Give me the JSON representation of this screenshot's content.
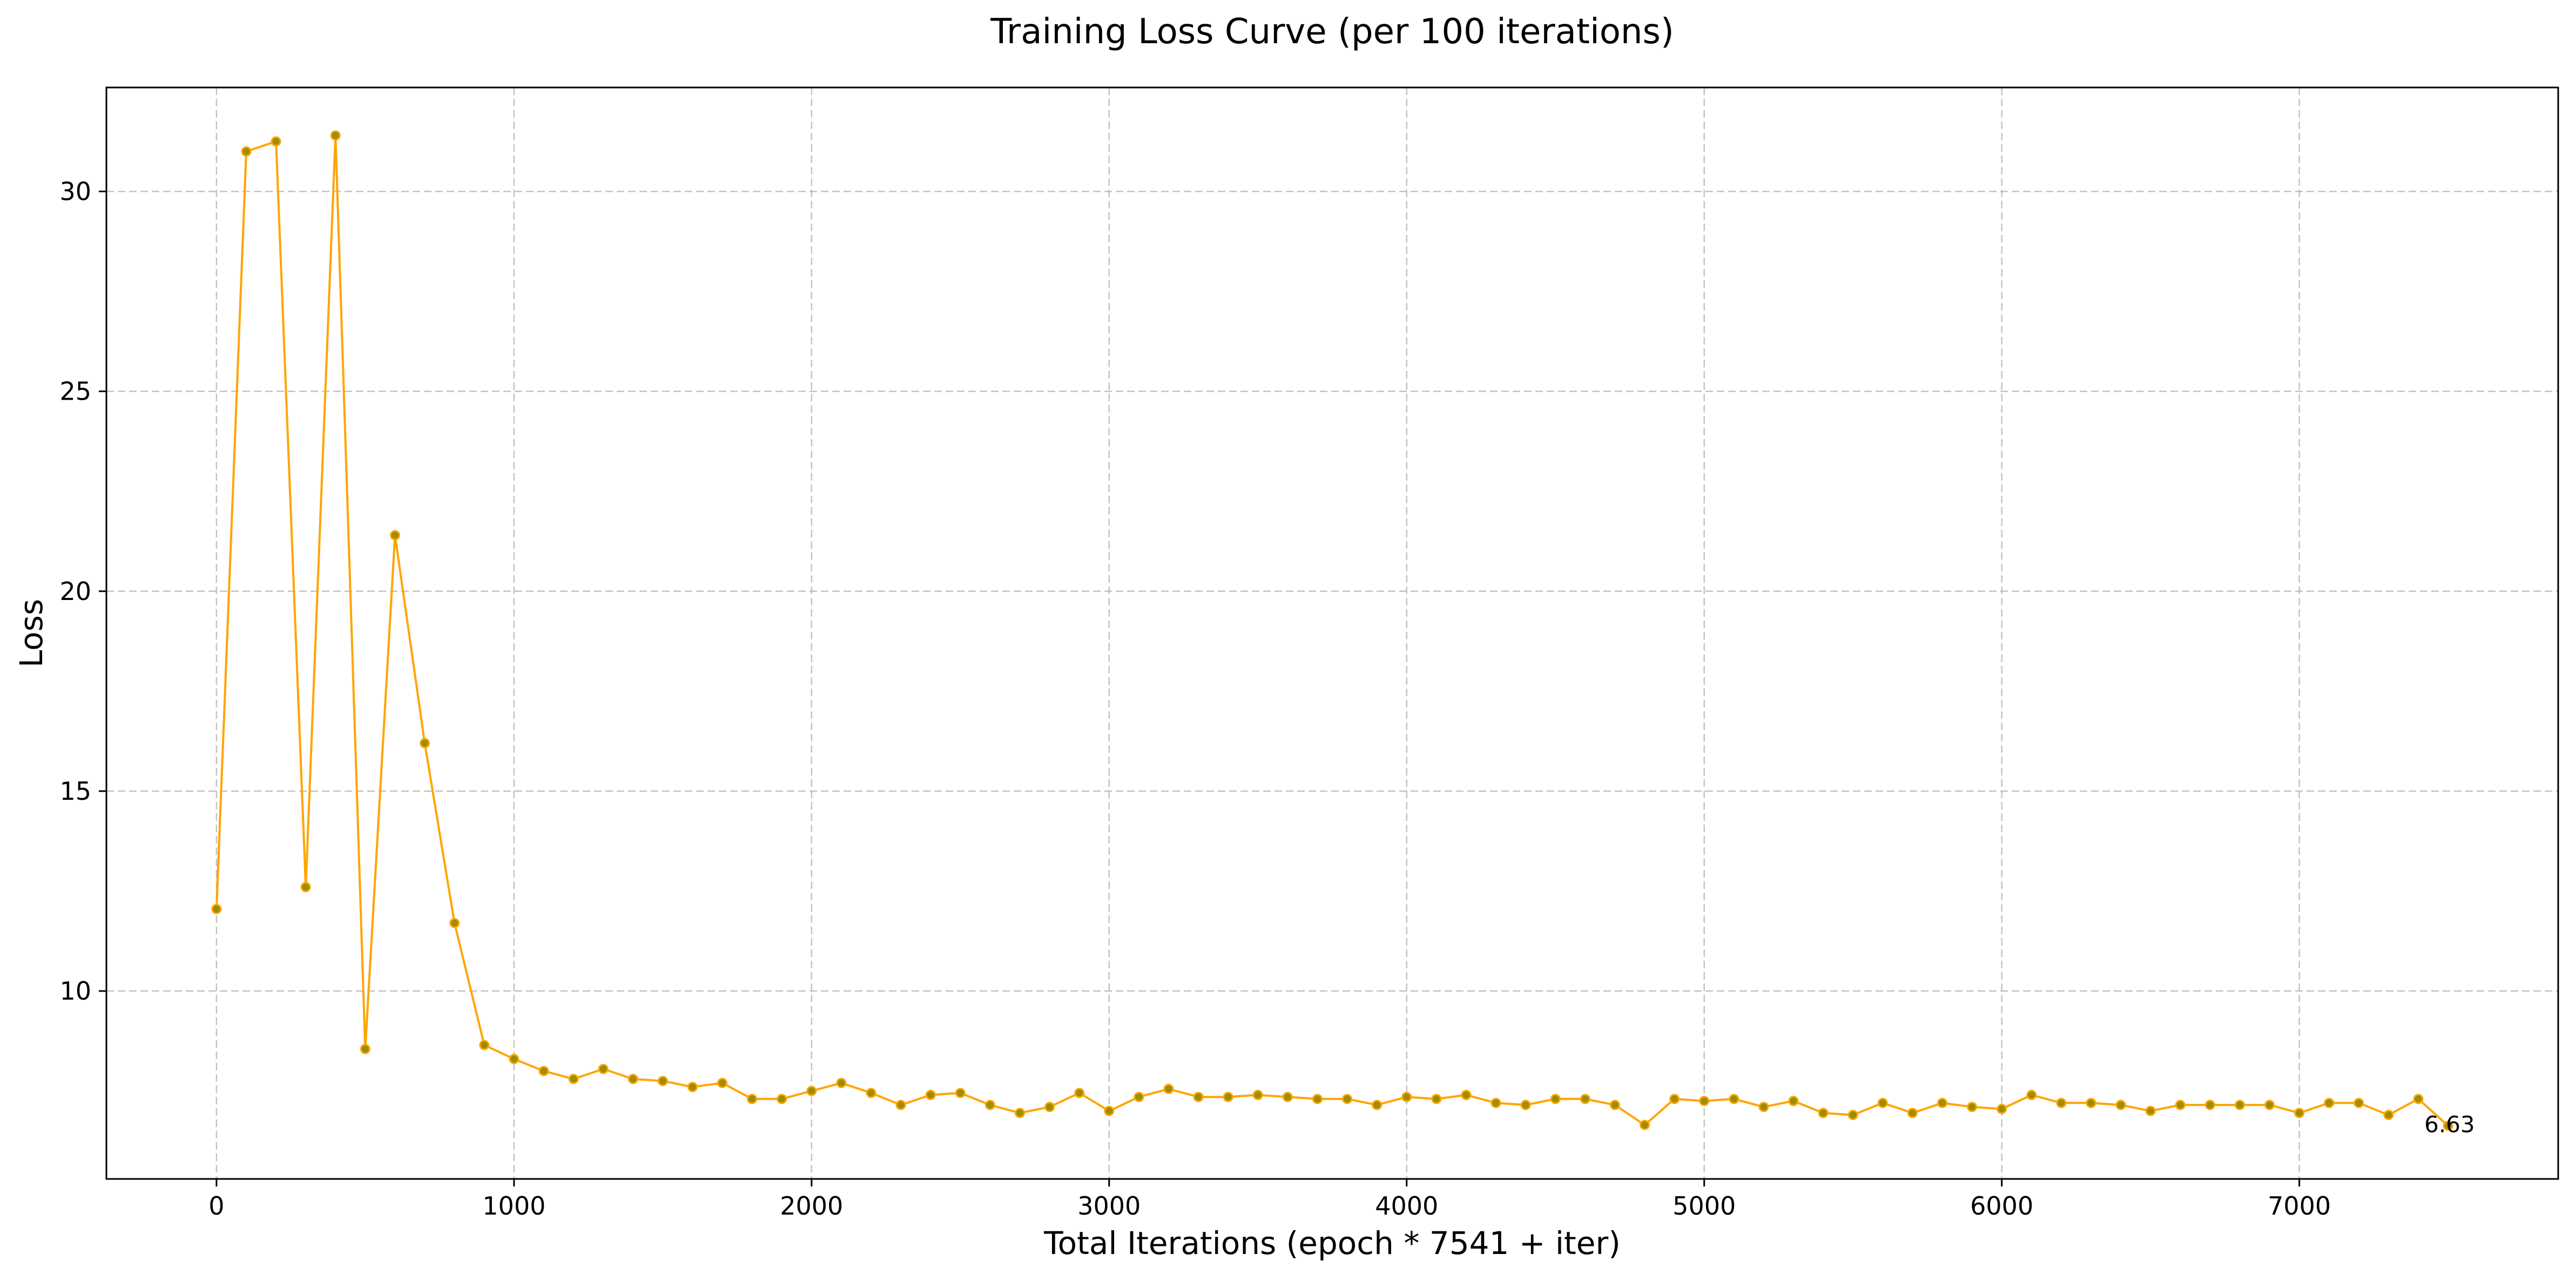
{
  "chart_data": {
    "type": "line",
    "title": "Training Loss Curve (per 100 iterations)",
    "xlabel": "Total Iterations (epoch * 7541 + iter)",
    "ylabel": "Loss",
    "xlim": [
      -370,
      7870
    ],
    "ylim": [
      5.3,
      32.6
    ],
    "x_ticks": [
      0,
      1000,
      2000,
      3000,
      4000,
      5000,
      6000,
      7000
    ],
    "y_ticks": [
      10,
      15,
      20,
      25,
      30
    ],
    "grid": true,
    "series": [
      {
        "color": "#FFA500",
        "marker_color": "#9B8E00",
        "x": [
          0,
          100,
          200,
          300,
          400,
          500,
          600,
          700,
          800,
          900,
          1000,
          1100,
          1200,
          1300,
          1400,
          1500,
          1600,
          1700,
          1800,
          1900,
          2000,
          2100,
          2200,
          2300,
          2400,
          2500,
          2600,
          2700,
          2800,
          2900,
          3000,
          3100,
          3200,
          3300,
          3400,
          3500,
          3600,
          3700,
          3800,
          3900,
          4000,
          4100,
          4200,
          4300,
          4400,
          4500,
          4600,
          4700,
          4800,
          4900,
          5000,
          5100,
          5200,
          5300,
          5400,
          5500,
          5600,
          5700,
          5800,
          5900,
          6000,
          6100,
          6200,
          6300,
          6400,
          6500,
          6600,
          6700,
          6800,
          6900,
          7000,
          7100,
          7200,
          7300,
          7400,
          7500
        ],
        "values": [
          12.05,
          31.0,
          31.25,
          12.6,
          31.4,
          8.55,
          21.4,
          16.2,
          11.7,
          8.65,
          8.3,
          8.0,
          7.8,
          8.05,
          7.8,
          7.75,
          7.6,
          7.7,
          7.3,
          7.3,
          7.5,
          7.7,
          7.45,
          7.15,
          7.4,
          7.45,
          7.15,
          6.95,
          7.1,
          7.45,
          7.0,
          7.35,
          7.55,
          7.35,
          7.35,
          7.4,
          7.35,
          7.3,
          7.3,
          7.15,
          7.35,
          7.3,
          7.4,
          7.2,
          7.15,
          7.3,
          7.3,
          7.15,
          6.65,
          7.3,
          7.25,
          7.3,
          7.1,
          7.25,
          6.95,
          6.9,
          7.2,
          6.95,
          7.2,
          7.1,
          7.05,
          7.4,
          7.2,
          7.2,
          7.15,
          7.0,
          7.15,
          7.15,
          7.15,
          7.15,
          6.95,
          7.2,
          7.2,
          6.9,
          7.3,
          6.63
        ]
      }
    ],
    "annotations": [
      {
        "x": 7500,
        "y": 6.63,
        "text": "6.63"
      }
    ]
  }
}
